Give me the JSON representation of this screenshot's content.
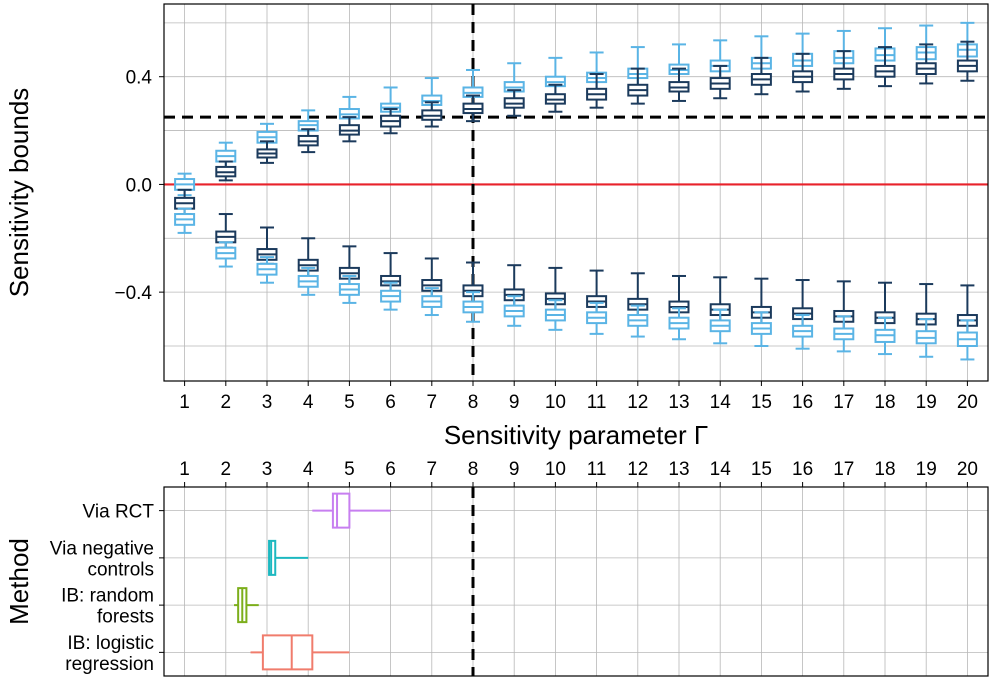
{
  "chart_data": [
    {
      "type": "box",
      "ylabel": "Sensitivity bounds",
      "xlabel": "Sensitivity parameter Γ",
      "x": [
        1,
        2,
        3,
        4,
        5,
        6,
        7,
        8,
        9,
        10,
        11,
        12,
        13,
        14,
        15,
        16,
        17,
        18,
        19,
        20
      ],
      "xlim": [
        0.5,
        20.5
      ],
      "ylim": [
        -0.73,
        0.67
      ],
      "yticks": [
        0.4,
        0.0,
        -0.4
      ],
      "ytick_labels": [
        "0.4",
        "0.0",
        "−0.4"
      ],
      "grid": true,
      "reference_lines": [
        {
          "axis": "y",
          "value": 0.0,
          "style": "solid",
          "color": "#e8222a"
        },
        {
          "axis": "y",
          "value": 0.25,
          "style": "dashed",
          "color": "#000000"
        },
        {
          "axis": "x",
          "value": 8,
          "style": "dashed",
          "color": "#000000"
        }
      ],
      "series": [
        {
          "role": "light-upper",
          "color": "#5ab4e5",
          "boxes": [
            {
              "x": 1,
              "q1": -0.02,
              "median": 0.0,
              "q3": 0.02,
              "lw": -0.04,
              "uw": 0.04
            },
            {
              "x": 2,
              "q1": 0.085,
              "median": 0.105,
              "q3": 0.125,
              "lw": 0.06,
              "uw": 0.155
            },
            {
              "x": 3,
              "q1": 0.155,
              "median": 0.175,
              "q3": 0.195,
              "lw": 0.13,
              "uw": 0.225
            },
            {
              "x": 4,
              "q1": 0.2,
              "median": 0.22,
              "q3": 0.235,
              "lw": 0.17,
              "uw": 0.275
            },
            {
              "x": 5,
              "q1": 0.245,
              "median": 0.26,
              "q3": 0.28,
              "lw": 0.2,
              "uw": 0.325
            },
            {
              "x": 6,
              "q1": 0.27,
              "median": 0.285,
              "q3": 0.3,
              "lw": 0.23,
              "uw": 0.36
            },
            {
              "x": 7,
              "q1": 0.295,
              "median": 0.31,
              "q3": 0.33,
              "lw": 0.26,
              "uw": 0.395
            },
            {
              "x": 8,
              "q1": 0.325,
              "median": 0.34,
              "q3": 0.36,
              "lw": 0.28,
              "uw": 0.425
            },
            {
              "x": 9,
              "q1": 0.345,
              "median": 0.36,
              "q3": 0.38,
              "lw": 0.3,
              "uw": 0.45
            },
            {
              "x": 10,
              "q1": 0.365,
              "median": 0.38,
              "q3": 0.4,
              "lw": 0.32,
              "uw": 0.47
            },
            {
              "x": 11,
              "q1": 0.38,
              "median": 0.395,
              "q3": 0.415,
              "lw": 0.335,
              "uw": 0.49
            },
            {
              "x": 12,
              "q1": 0.395,
              "median": 0.41,
              "q3": 0.43,
              "lw": 0.35,
              "uw": 0.51
            },
            {
              "x": 13,
              "q1": 0.41,
              "median": 0.425,
              "q3": 0.445,
              "lw": 0.36,
              "uw": 0.52
            },
            {
              "x": 14,
              "q1": 0.42,
              "median": 0.44,
              "q3": 0.46,
              "lw": 0.37,
              "uw": 0.535
            },
            {
              "x": 15,
              "q1": 0.43,
              "median": 0.45,
              "q3": 0.47,
              "lw": 0.38,
              "uw": 0.55
            },
            {
              "x": 16,
              "q1": 0.44,
              "median": 0.46,
              "q3": 0.485,
              "lw": 0.39,
              "uw": 0.56
            },
            {
              "x": 17,
              "q1": 0.45,
              "median": 0.47,
              "q3": 0.495,
              "lw": 0.4,
              "uw": 0.57
            },
            {
              "x": 18,
              "q1": 0.46,
              "median": 0.48,
              "q3": 0.505,
              "lw": 0.405,
              "uw": 0.58
            },
            {
              "x": 19,
              "q1": 0.465,
              "median": 0.49,
              "q3": 0.51,
              "lw": 0.41,
              "uw": 0.59
            },
            {
              "x": 20,
              "q1": 0.475,
              "median": 0.5,
              "q3": 0.52,
              "lw": 0.42,
              "uw": 0.6
            }
          ]
        },
        {
          "role": "dark-upper",
          "color": "#1b3a5c",
          "boxes": [
            {
              "x": 1,
              "q1": -0.09,
              "median": -0.07,
              "q3": -0.05,
              "lw": -0.11,
              "uw": -0.02
            },
            {
              "x": 2,
              "q1": 0.03,
              "median": 0.045,
              "q3": 0.065,
              "lw": 0.015,
              "uw": 0.085
            },
            {
              "x": 3,
              "q1": 0.1,
              "median": 0.115,
              "q3": 0.13,
              "lw": 0.08,
              "uw": 0.16
            },
            {
              "x": 4,
              "q1": 0.145,
              "median": 0.16,
              "q3": 0.18,
              "lw": 0.12,
              "uw": 0.205
            },
            {
              "x": 5,
              "q1": 0.185,
              "median": 0.2,
              "q3": 0.22,
              "lw": 0.16,
              "uw": 0.25
            },
            {
              "x": 6,
              "q1": 0.215,
              "median": 0.235,
              "q3": 0.255,
              "lw": 0.19,
              "uw": 0.28
            },
            {
              "x": 7,
              "q1": 0.24,
              "median": 0.255,
              "q3": 0.275,
              "lw": 0.215,
              "uw": 0.305
            },
            {
              "x": 8,
              "q1": 0.265,
              "median": 0.28,
              "q3": 0.3,
              "lw": 0.235,
              "uw": 0.33
            },
            {
              "x": 9,
              "q1": 0.285,
              "median": 0.3,
              "q3": 0.32,
              "lw": 0.255,
              "uw": 0.35
            },
            {
              "x": 10,
              "q1": 0.3,
              "median": 0.315,
              "q3": 0.335,
              "lw": 0.27,
              "uw": 0.37
            },
            {
              "x": 11,
              "q1": 0.315,
              "median": 0.335,
              "q3": 0.355,
              "lw": 0.285,
              "uw": 0.41
            },
            {
              "x": 12,
              "q1": 0.33,
              "median": 0.35,
              "q3": 0.37,
              "lw": 0.3,
              "uw": 0.43
            },
            {
              "x": 13,
              "q1": 0.345,
              "median": 0.36,
              "q3": 0.38,
              "lw": 0.31,
              "uw": 0.43
            },
            {
              "x": 14,
              "q1": 0.355,
              "median": 0.375,
              "q3": 0.395,
              "lw": 0.32,
              "uw": 0.44
            },
            {
              "x": 15,
              "q1": 0.37,
              "median": 0.39,
              "q3": 0.41,
              "lw": 0.335,
              "uw": 0.47
            },
            {
              "x": 16,
              "q1": 0.38,
              "median": 0.4,
              "q3": 0.42,
              "lw": 0.345,
              "uw": 0.485
            },
            {
              "x": 17,
              "q1": 0.39,
              "median": 0.41,
              "q3": 0.43,
              "lw": 0.355,
              "uw": 0.495
            },
            {
              "x": 18,
              "q1": 0.4,
              "median": 0.42,
              "q3": 0.44,
              "lw": 0.365,
              "uw": 0.51
            },
            {
              "x": 19,
              "q1": 0.41,
              "median": 0.43,
              "q3": 0.45,
              "lw": 0.375,
              "uw": 0.52
            },
            {
              "x": 20,
              "q1": 0.42,
              "median": 0.44,
              "q3": 0.46,
              "lw": 0.385,
              "uw": 0.53
            }
          ]
        },
        {
          "role": "dark-lower",
          "color": "#1b3a5c",
          "boxes": [
            {
              "x": 2,
              "q1": -0.215,
              "median": -0.195,
              "q3": -0.175,
              "lw": -0.235,
              "uw": -0.11
            },
            {
              "x": 3,
              "q1": -0.28,
              "median": -0.26,
              "q3": -0.24,
              "lw": -0.295,
              "uw": -0.16
            },
            {
              "x": 4,
              "q1": -0.32,
              "median": -0.3,
              "q3": -0.28,
              "lw": -0.34,
              "uw": -0.2
            },
            {
              "x": 5,
              "q1": -0.35,
              "median": -0.33,
              "q3": -0.31,
              "lw": -0.375,
              "uw": -0.23
            },
            {
              "x": 6,
              "q1": -0.375,
              "median": -0.36,
              "q3": -0.34,
              "lw": -0.4,
              "uw": -0.255
            },
            {
              "x": 7,
              "q1": -0.395,
              "median": -0.375,
              "q3": -0.355,
              "lw": -0.42,
              "uw": -0.275
            },
            {
              "x": 8,
              "q1": -0.415,
              "median": -0.395,
              "q3": -0.375,
              "lw": -0.44,
              "uw": -0.29
            },
            {
              "x": 9,
              "q1": -0.43,
              "median": -0.41,
              "q3": -0.39,
              "lw": -0.455,
              "uw": -0.3
            },
            {
              "x": 10,
              "q1": -0.445,
              "median": -0.425,
              "q3": -0.405,
              "lw": -0.47,
              "uw": -0.31
            },
            {
              "x": 11,
              "q1": -0.455,
              "median": -0.435,
              "q3": -0.415,
              "lw": -0.48,
              "uw": -0.32
            },
            {
              "x": 12,
              "q1": -0.465,
              "median": -0.445,
              "q3": -0.425,
              "lw": -0.49,
              "uw": -0.33
            },
            {
              "x": 13,
              "q1": -0.475,
              "median": -0.455,
              "q3": -0.435,
              "lw": -0.5,
              "uw": -0.34
            },
            {
              "x": 14,
              "q1": -0.485,
              "median": -0.465,
              "q3": -0.445,
              "lw": -0.51,
              "uw": -0.345
            },
            {
              "x": 15,
              "q1": -0.495,
              "median": -0.475,
              "q3": -0.455,
              "lw": -0.52,
              "uw": -0.35
            },
            {
              "x": 16,
              "q1": -0.5,
              "median": -0.48,
              "q3": -0.46,
              "lw": -0.53,
              "uw": -0.355
            },
            {
              "x": 17,
              "q1": -0.51,
              "median": -0.49,
              "q3": -0.47,
              "lw": -0.54,
              "uw": -0.36
            },
            {
              "x": 18,
              "q1": -0.515,
              "median": -0.495,
              "q3": -0.475,
              "lw": -0.545,
              "uw": -0.365
            },
            {
              "x": 19,
              "q1": -0.52,
              "median": -0.5,
              "q3": -0.48,
              "lw": -0.55,
              "uw": -0.37
            },
            {
              "x": 20,
              "q1": -0.525,
              "median": -0.505,
              "q3": -0.485,
              "lw": -0.555,
              "uw": -0.375
            }
          ]
        },
        {
          "role": "light-lower",
          "color": "#5ab4e5",
          "boxes": [
            {
              "x": 1,
              "q1": -0.15,
              "median": -0.13,
              "q3": -0.11,
              "lw": -0.18,
              "uw": -0.09
            },
            {
              "x": 2,
              "q1": -0.275,
              "median": -0.255,
              "q3": -0.235,
              "lw": -0.305,
              "uw": -0.215
            },
            {
              "x": 3,
              "q1": -0.335,
              "median": -0.315,
              "q3": -0.295,
              "lw": -0.365,
              "uw": -0.27
            },
            {
              "x": 4,
              "q1": -0.38,
              "median": -0.36,
              "q3": -0.34,
              "lw": -0.41,
              "uw": -0.31
            },
            {
              "x": 5,
              "q1": -0.41,
              "median": -0.39,
              "q3": -0.37,
              "lw": -0.44,
              "uw": -0.34
            },
            {
              "x": 6,
              "q1": -0.435,
              "median": -0.415,
              "q3": -0.395,
              "lw": -0.465,
              "uw": -0.365
            },
            {
              "x": 7,
              "q1": -0.455,
              "median": -0.435,
              "q3": -0.415,
              "lw": -0.485,
              "uw": -0.385
            },
            {
              "x": 8,
              "q1": -0.475,
              "median": -0.455,
              "q3": -0.435,
              "lw": -0.51,
              "uw": -0.4
            },
            {
              "x": 9,
              "q1": -0.49,
              "median": -0.47,
              "q3": -0.45,
              "lw": -0.525,
              "uw": -0.415
            },
            {
              "x": 10,
              "q1": -0.505,
              "median": -0.485,
              "q3": -0.465,
              "lw": -0.54,
              "uw": -0.43
            },
            {
              "x": 11,
              "q1": -0.515,
              "median": -0.495,
              "q3": -0.475,
              "lw": -0.555,
              "uw": -0.44
            },
            {
              "x": 12,
              "q1": -0.525,
              "median": -0.505,
              "q3": -0.485,
              "lw": -0.565,
              "uw": -0.45
            },
            {
              "x": 13,
              "q1": -0.535,
              "median": -0.515,
              "q3": -0.495,
              "lw": -0.575,
              "uw": -0.46
            },
            {
              "x": 14,
              "q1": -0.545,
              "median": -0.525,
              "q3": -0.505,
              "lw": -0.59,
              "uw": -0.465
            },
            {
              "x": 15,
              "q1": -0.555,
              "median": -0.535,
              "q3": -0.515,
              "lw": -0.6,
              "uw": -0.475
            },
            {
              "x": 16,
              "q1": -0.565,
              "median": -0.545,
              "q3": -0.525,
              "lw": -0.61,
              "uw": -0.485
            },
            {
              "x": 17,
              "q1": -0.575,
              "median": -0.555,
              "q3": -0.535,
              "lw": -0.62,
              "uw": -0.49
            },
            {
              "x": 18,
              "q1": -0.585,
              "median": -0.56,
              "q3": -0.54,
              "lw": -0.63,
              "uw": -0.495
            },
            {
              "x": 19,
              "q1": -0.59,
              "median": -0.57,
              "q3": -0.545,
              "lw": -0.64,
              "uw": -0.5
            },
            {
              "x": 20,
              "q1": -0.6,
              "median": -0.575,
              "q3": -0.55,
              "lw": -0.65,
              "uw": -0.505
            }
          ]
        }
      ]
    },
    {
      "type": "box",
      "orientation": "horizontal",
      "ylabel": "Method",
      "xlim": [
        0.5,
        20.5
      ],
      "xticks": [
        1,
        2,
        3,
        4,
        5,
        6,
        7,
        8,
        9,
        10,
        11,
        12,
        13,
        14,
        15,
        16,
        17,
        18,
        19,
        20
      ],
      "xaxis_position": "top",
      "grid": true,
      "reference_lines": [
        {
          "axis": "x",
          "value": 8,
          "style": "dashed",
          "color": "#000000"
        }
      ],
      "categories": [
        [
          "Via RCT"
        ],
        [
          "Via negative",
          "controls"
        ],
        [
          "IB: random",
          "forests"
        ],
        [
          "IB: logistic",
          "regression"
        ]
      ],
      "boxes": [
        {
          "category": "Via RCT",
          "color": "#c77ff0",
          "lw": 4.1,
          "q1": 4.6,
          "median": 4.7,
          "q3": 5.0,
          "uw": 6.0
        },
        {
          "category": "Via negative controls",
          "color": "#1cb8c0",
          "lw": 3.05,
          "q1": 3.05,
          "median": 3.1,
          "q3": 3.2,
          "uw": 4.0
        },
        {
          "category": "IB: random forests",
          "color": "#7cae1b",
          "lw": 2.2,
          "q1": 2.3,
          "median": 2.4,
          "q3": 2.5,
          "uw": 2.8
        },
        {
          "category": "IB: logistic regression",
          "color": "#f07c6c",
          "lw": 2.6,
          "q1": 2.9,
          "median": 3.6,
          "q3": 4.1,
          "uw": 5.0
        }
      ]
    }
  ]
}
